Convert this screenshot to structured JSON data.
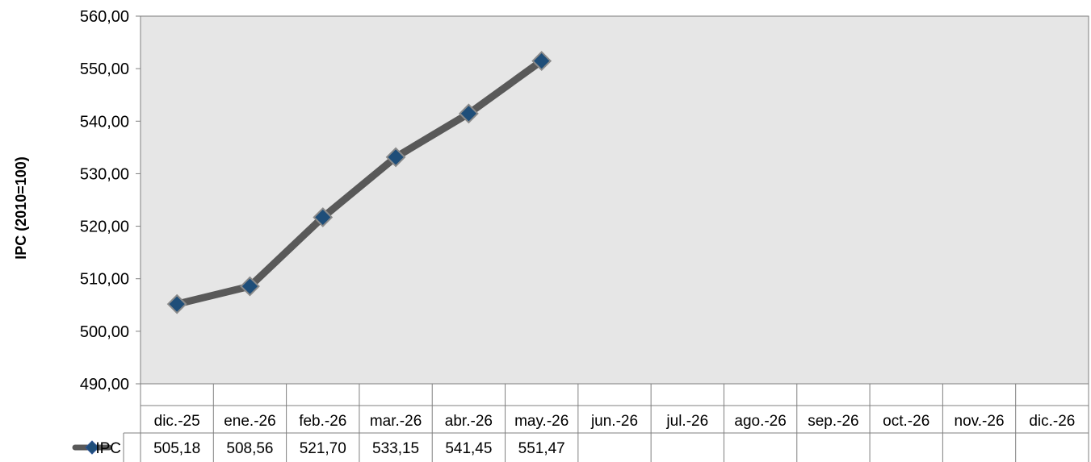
{
  "chart_data": {
    "type": "line",
    "title": "",
    "xlabel": "",
    "ylabel": "IPC (2010=100)",
    "ylim": [
      490,
      560
    ],
    "ytick_step": 10,
    "ytick_labels": [
      "490,00",
      "500,00",
      "510,00",
      "520,00",
      "530,00",
      "540,00",
      "550,00",
      "560,00"
    ],
    "grid": false,
    "plot_background": "#e6e6e6",
    "categories": [
      "dic.-25",
      "ene.-26",
      "feb.-26",
      "mar.-26",
      "abr.-26",
      "may.-26",
      "jun.-26",
      "jul.-26",
      "ago.-26",
      "sep.-26",
      "oct.-26",
      "nov.-26",
      "dic.-26"
    ],
    "series": [
      {
        "name": "IPC",
        "values": [
          505.18,
          508.56,
          521.7,
          533.15,
          541.45,
          551.47,
          null,
          null,
          null,
          null,
          null,
          null,
          null
        ],
        "value_labels": [
          "505,18",
          "508,56",
          "521,70",
          "533,15",
          "541,45",
          "551,47",
          "",
          "",
          "",
          "",
          "",
          "",
          ""
        ],
        "line_color": "#595959",
        "marker_color": "#1f4e79",
        "marker": "diamond"
      }
    ],
    "legend": "data-table"
  }
}
